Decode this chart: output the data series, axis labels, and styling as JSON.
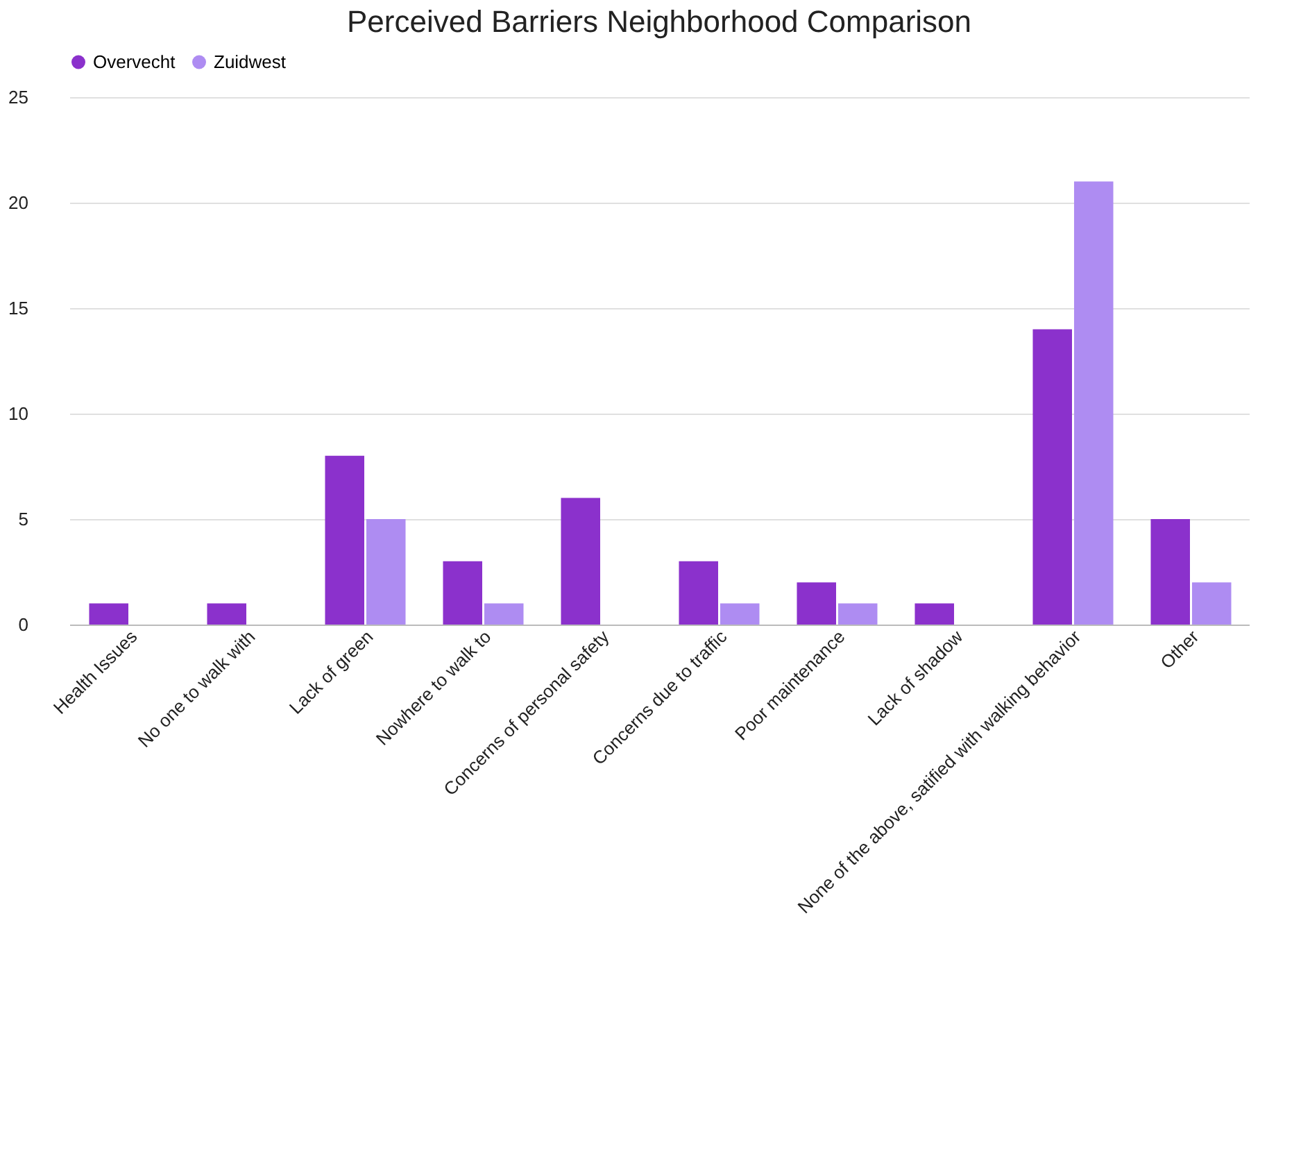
{
  "chart_data": {
    "type": "bar",
    "title": "Perceived Barriers Neighborhood Comparison",
    "categories": [
      "Health Issues",
      "No one to walk with",
      "Lack of green",
      "Nowhere to walk to",
      "Concerns of personal safety",
      "Concerns due to traffic",
      "Poor maintenance",
      "Lack of shadow",
      "None of the above, satified with walking behavior",
      "Other"
    ],
    "series": [
      {
        "name": "Overvecht",
        "color": "#8b31cc",
        "values": [
          1,
          1,
          8,
          3,
          6,
          3,
          2,
          1,
          14,
          5
        ]
      },
      {
        "name": "Zuidwest",
        "color": "#ae8cf2",
        "values": [
          0,
          0,
          5,
          1,
          0,
          1,
          1,
          0,
          21,
          2
        ]
      }
    ],
    "ylim": [
      0,
      25
    ],
    "yticks": [
      0,
      5,
      10,
      15,
      20,
      25
    ],
    "grid": "y",
    "legend": "top"
  }
}
